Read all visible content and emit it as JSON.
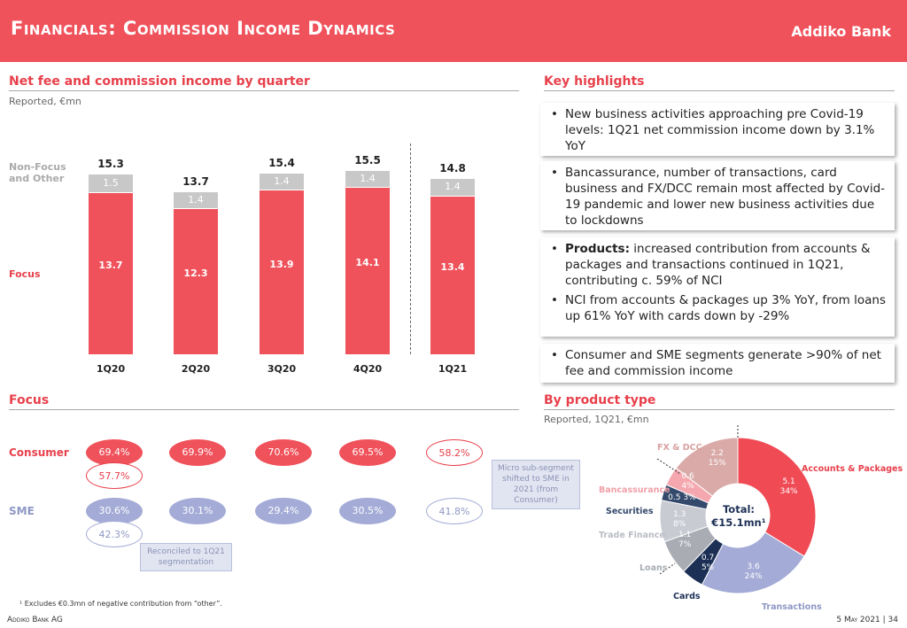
{
  "header": {
    "title": "Financials: Commission Income Dynamics",
    "logo": "Addiko Bank"
  },
  "left": {
    "title": "Net fee and commission income by quarter",
    "subtitle": "Reported, €mn",
    "row_other": "Non-Focus and Other",
    "row_focus": "Focus"
  },
  "chart_data": [
    {
      "type": "bar",
      "stacked": true,
      "categories": [
        "1Q20",
        "2Q20",
        "3Q20",
        "4Q20",
        "1Q21"
      ],
      "series": [
        {
          "name": "Focus",
          "values": [
            13.7,
            12.3,
            13.9,
            14.1,
            13.4
          ],
          "color": "#f0525b"
        },
        {
          "name": "Non-Focus and Other",
          "values": [
            1.5,
            1.4,
            1.4,
            1.4,
            1.4
          ],
          "color": "#c8c8c8"
        }
      ],
      "totals": [
        15.3,
        13.7,
        15.4,
        15.5,
        14.8
      ]
    },
    {
      "type": "pie",
      "donut": true,
      "title": "By product type",
      "subtitle": "Reported, 1Q21, €mn",
      "center_label": "Total:",
      "center_value": "€15.1mn¹",
      "slices": [
        {
          "name": "Accounts & Packages",
          "value": 5.1,
          "pct": "34%",
          "color": "#f04a55",
          "label_color": "#e8404b"
        },
        {
          "name": "Transactions",
          "value": 3.6,
          "pct": "24%",
          "color": "#a3abd6",
          "label_color": "#8f98c4"
        },
        {
          "name": "Cards",
          "value": 0.7,
          "pct": "5%",
          "color": "#1c2f55",
          "label_color": "#1c2f55"
        },
        {
          "name": "Loans",
          "value": 1.1,
          "pct": "7%",
          "color": "#a9adb3",
          "label_color": "#a9adb3"
        },
        {
          "name": "Trade Finance",
          "value": 1.3,
          "pct": "8%",
          "color": "#c9cbd2",
          "label_color": "#b9bcc4"
        },
        {
          "name": "Securities",
          "value": 0.5,
          "pct": "3%",
          "color": "#344a6c",
          "label_color": "#344a6c"
        },
        {
          "name": "Bancassurance",
          "value": 0.6,
          "pct": "4%",
          "color": "#f4a7ae",
          "label_color": "#f0a0a8"
        },
        {
          "name": "FX & DCC",
          "value": 2.2,
          "pct": "15%",
          "color": "#d9aaa8",
          "label_color": "#d9a0a0"
        }
      ]
    }
  ],
  "focus": {
    "title": "Focus",
    "consumer_label": "Consumer",
    "sme_label": "SME",
    "consumer": [
      "69.4%",
      "69.9%",
      "70.6%",
      "69.5%",
      "58.2%"
    ],
    "consumer_reconciled": "57.7%",
    "sme": [
      "30.6%",
      "30.1%",
      "29.4%",
      "30.5%",
      "41.8%"
    ],
    "sme_reconciled": "42.3%",
    "callout_reconciled": "Reconciled to 1Q21 segmentation",
    "callout_micro": "Micro sub-segment shifted to SME in 2021 (from Consumer)"
  },
  "highlights": {
    "title": "Key highlights",
    "boxes": [
      [
        "New business activities approaching pre Covid-19 levels: 1Q21 net commission income down by 3.1% YoY"
      ],
      [
        "Bancassurance, number of transactions, card business and FX/DCC remain most affected by Covid-19 pandemic and lower new business activities due to lockdowns"
      ],
      [
        "Products:",
        "increased contribution from accounts & packages and transactions continued in 1Q21, contributing c. 59% of NCI",
        "NCI from accounts & packages up 3% YoY, from loans up 61% YoY with cards down by -29%"
      ],
      [
        "Consumer and SME segments generate >90% of net fee and commission income"
      ]
    ]
  },
  "footer": {
    "note": "¹ Excludes €0.3mn of negative contribution from “other”.",
    "company": "Addiko Bank AG",
    "date": "5 May 2021 | 34"
  }
}
